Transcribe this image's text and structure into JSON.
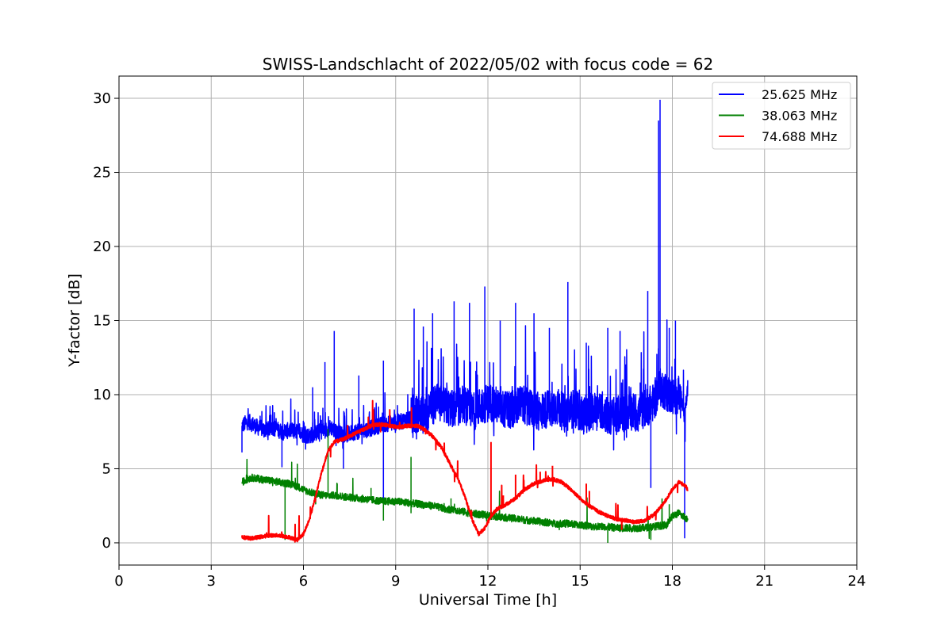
{
  "chart_data": {
    "type": "line",
    "title": "SWISS-Landschlacht of 2022/05/02 with focus code = 62",
    "xlabel": "Universal Time [h]",
    "ylabel": "Y-factor [dB]",
    "xlim": [
      0,
      24
    ],
    "ylim": [
      -1.5,
      31.5
    ],
    "xticks": [
      0,
      3,
      6,
      9,
      12,
      15,
      18,
      21,
      24
    ],
    "yticks": [
      0,
      5,
      10,
      15,
      20,
      25,
      30
    ],
    "grid": true,
    "legend_position": "top-right",
    "series": [
      {
        "name": "25.625 MHz",
        "color": "#0000ff",
        "x": [
          4.0,
          4.2,
          4.5,
          4.8,
          5.0,
          5.3,
          5.6,
          5.9,
          6.1,
          6.3,
          6.5,
          6.7,
          6.9,
          7.1,
          7.4,
          7.7,
          8.0,
          8.3,
          8.6,
          8.9,
          9.2,
          9.5,
          9.8,
          10.0,
          10.3,
          10.6,
          10.9,
          11.2,
          11.5,
          11.8,
          12.1,
          12.4,
          12.7,
          13.0,
          13.3,
          13.6,
          13.9,
          14.2,
          14.5,
          14.8,
          15.1,
          15.4,
          15.7,
          16.0,
          16.3,
          16.6,
          16.9,
          17.2,
          17.4,
          17.5,
          17.6,
          17.8,
          18.0,
          18.2,
          18.3,
          18.4,
          18.5
        ],
        "y": [
          7.9,
          8.2,
          7.8,
          7.6,
          7.8,
          7.5,
          7.6,
          7.4,
          7.2,
          7.3,
          7.5,
          7.6,
          7.8,
          7.4,
          7.3,
          7.5,
          7.6,
          7.8,
          8.0,
          8.1,
          8.2,
          8.5,
          8.7,
          8.6,
          9.5,
          9.2,
          9.0,
          9.4,
          8.8,
          9.3,
          9.5,
          9.1,
          8.9,
          9.4,
          9.2,
          8.8,
          9.0,
          9.3,
          8.7,
          9.1,
          8.6,
          8.9,
          9.0,
          8.4,
          8.7,
          8.9,
          8.8,
          9.2,
          9.5,
          10.0,
          10.5,
          10.2,
          9.8,
          10.0,
          9.5,
          8.5,
          10.5
        ],
        "spikes": [
          [
            4.0,
            6.1
          ],
          [
            5.3,
            5.1
          ],
          [
            6.3,
            10.5
          ],
          [
            6.7,
            12.2
          ],
          [
            7.0,
            14.3
          ],
          [
            7.3,
            5.0
          ],
          [
            7.8,
            11.3
          ],
          [
            8.6,
            12.3
          ],
          [
            8.6,
            3.0
          ],
          [
            9.6,
            15.8
          ],
          [
            9.9,
            14.6
          ],
          [
            10.2,
            15.5
          ],
          [
            10.9,
            16.3
          ],
          [
            11.4,
            16.2
          ],
          [
            11.9,
            17.3
          ],
          [
            12.4,
            15.0
          ],
          [
            12.9,
            16.2
          ],
          [
            13.5,
            15.5
          ],
          [
            14.0,
            14.5
          ],
          [
            14.6,
            17.6
          ],
          [
            15.2,
            13.5
          ],
          [
            15.9,
            14.5
          ],
          [
            16.3,
            14.3
          ],
          [
            17.2,
            17.0
          ],
          [
            17.3,
            3.7
          ],
          [
            17.6,
            29.9
          ],
          [
            17.55,
            28.5
          ],
          [
            17.9,
            14.5
          ],
          [
            18.1,
            15.0
          ],
          [
            18.4,
            0.3
          ]
        ]
      },
      {
        "name": "38.063 MHz",
        "color": "#008000",
        "x": [
          4.0,
          4.3,
          4.6,
          4.9,
          5.2,
          5.5,
          5.8,
          6.1,
          6.4,
          6.7,
          7.0,
          7.4,
          7.8,
          8.2,
          8.6,
          9.0,
          9.4,
          9.8,
          10.2,
          10.6,
          11.0,
          11.4,
          11.8,
          12.2,
          12.6,
          13.0,
          13.4,
          13.8,
          14.2,
          14.6,
          15.0,
          15.4,
          15.8,
          16.2,
          16.6,
          17.0,
          17.4,
          17.8,
          18.0,
          18.2,
          18.5
        ],
        "y": [
          4.1,
          4.4,
          4.3,
          4.2,
          4.1,
          4.0,
          3.8,
          3.5,
          3.3,
          3.2,
          3.2,
          3.1,
          3.0,
          2.9,
          2.8,
          2.8,
          2.7,
          2.6,
          2.5,
          2.3,
          2.2,
          2.0,
          1.9,
          1.8,
          1.7,
          1.6,
          1.5,
          1.4,
          1.3,
          1.3,
          1.2,
          1.1,
          1.1,
          1.0,
          1.0,
          1.0,
          1.1,
          1.2,
          1.8,
          2.0,
          1.6
        ],
        "spikes": [
          [
            5.4,
            0.2
          ],
          [
            6.8,
            7.7
          ],
          [
            7.1,
            4.0
          ],
          [
            8.2,
            3.7
          ],
          [
            8.6,
            1.5
          ],
          [
            9.5,
            5.8
          ],
          [
            9.5,
            2.0
          ],
          [
            10.8,
            3.0
          ],
          [
            15.9,
            0.0
          ],
          [
            17.3,
            0.2
          ],
          [
            17.9,
            2.6
          ]
        ]
      },
      {
        "name": "74.688 MHz",
        "color": "#ff0000",
        "x": [
          4.0,
          4.3,
          4.6,
          4.9,
          5.2,
          5.5,
          5.8,
          6.0,
          6.2,
          6.4,
          6.6,
          6.8,
          7.0,
          7.3,
          7.6,
          7.9,
          8.2,
          8.5,
          8.8,
          9.1,
          9.4,
          9.7,
          9.9,
          10.2,
          10.5,
          10.8,
          11.1,
          11.3,
          11.5,
          11.7,
          11.9,
          12.1,
          12.3,
          12.6,
          12.9,
          13.2,
          13.5,
          13.8,
          14.1,
          14.4,
          14.7,
          15.0,
          15.3,
          15.6,
          15.9,
          16.2,
          16.5,
          16.8,
          17.1,
          17.4,
          17.7,
          18.0,
          18.2,
          18.4,
          18.5
        ],
        "y": [
          0.4,
          0.3,
          0.4,
          0.5,
          0.5,
          0.4,
          0.2,
          0.6,
          1.6,
          3.2,
          4.8,
          6.2,
          6.8,
          7.0,
          7.3,
          7.6,
          7.9,
          8.0,
          7.9,
          7.8,
          7.9,
          7.9,
          7.7,
          7.2,
          6.4,
          5.2,
          4.0,
          2.8,
          1.5,
          0.6,
          1.0,
          1.8,
          2.3,
          2.6,
          3.0,
          3.6,
          4.0,
          4.2,
          4.3,
          4.1,
          3.6,
          3.0,
          2.5,
          2.1,
          1.8,
          1.6,
          1.5,
          1.4,
          1.5,
          1.9,
          2.6,
          3.6,
          4.1,
          3.9,
          3.6
        ],
        "spikes": [
          [
            12.1,
            6.8
          ],
          [
            12.5,
            3.2
          ],
          [
            12.9,
            4.6
          ],
          [
            13.7,
            4.8
          ],
          [
            14.1,
            5.2
          ],
          [
            15.2,
            4.0
          ],
          [
            15.3,
            3.5
          ]
        ]
      }
    ]
  }
}
